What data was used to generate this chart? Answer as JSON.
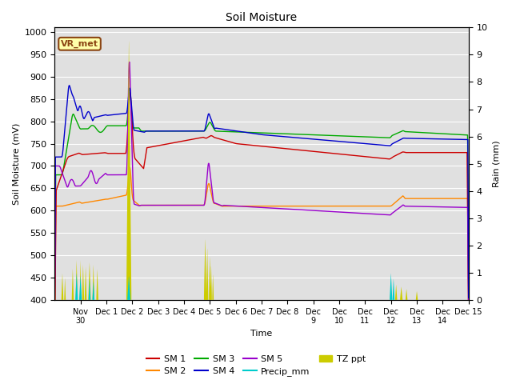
{
  "title": "Soil Moisture",
  "xlabel": "Time",
  "ylabel_left": "Soil Moisture (mV)",
  "ylabel_right": "Rain (mm)",
  "ylim_left": [
    400,
    1010
  ],
  "ylim_right": [
    0.0,
    10.0
  ],
  "background_color": "#e0e0e0",
  "annotation_text": "VR_met",
  "annotation_box_color": "#ffffaa",
  "annotation_border_color": "#8b4513",
  "colors": {
    "SM1": "#cc0000",
    "SM2": "#ff8800",
    "SM3": "#00aa00",
    "SM4": "#0000cc",
    "SM5": "#9900cc",
    "Precip_mm": "#00cccc",
    "TZ_ppt": "#cccc00"
  },
  "xtick_labels": [
    "Nov\n30",
    "Dec 1",
    "Dec 2",
    "Dec 3",
    "Dec 4",
    "Dec 5",
    "Dec 6",
    "Dec 7",
    "Dec 8",
    "Dec\n9",
    "Dec\n10",
    "Dec\n11",
    "Dec\n12",
    "Dec\n13",
    "Dec\n14",
    "Dec 15"
  ],
  "yticks": [
    400,
    450,
    500,
    550,
    600,
    650,
    700,
    750,
    800,
    850,
    900,
    950,
    1000
  ],
  "rain_yticks": [
    0.0,
    1.0,
    2.0,
    3.0,
    4.0,
    5.0,
    6.0,
    7.0,
    8.0,
    9.0,
    10.0
  ]
}
